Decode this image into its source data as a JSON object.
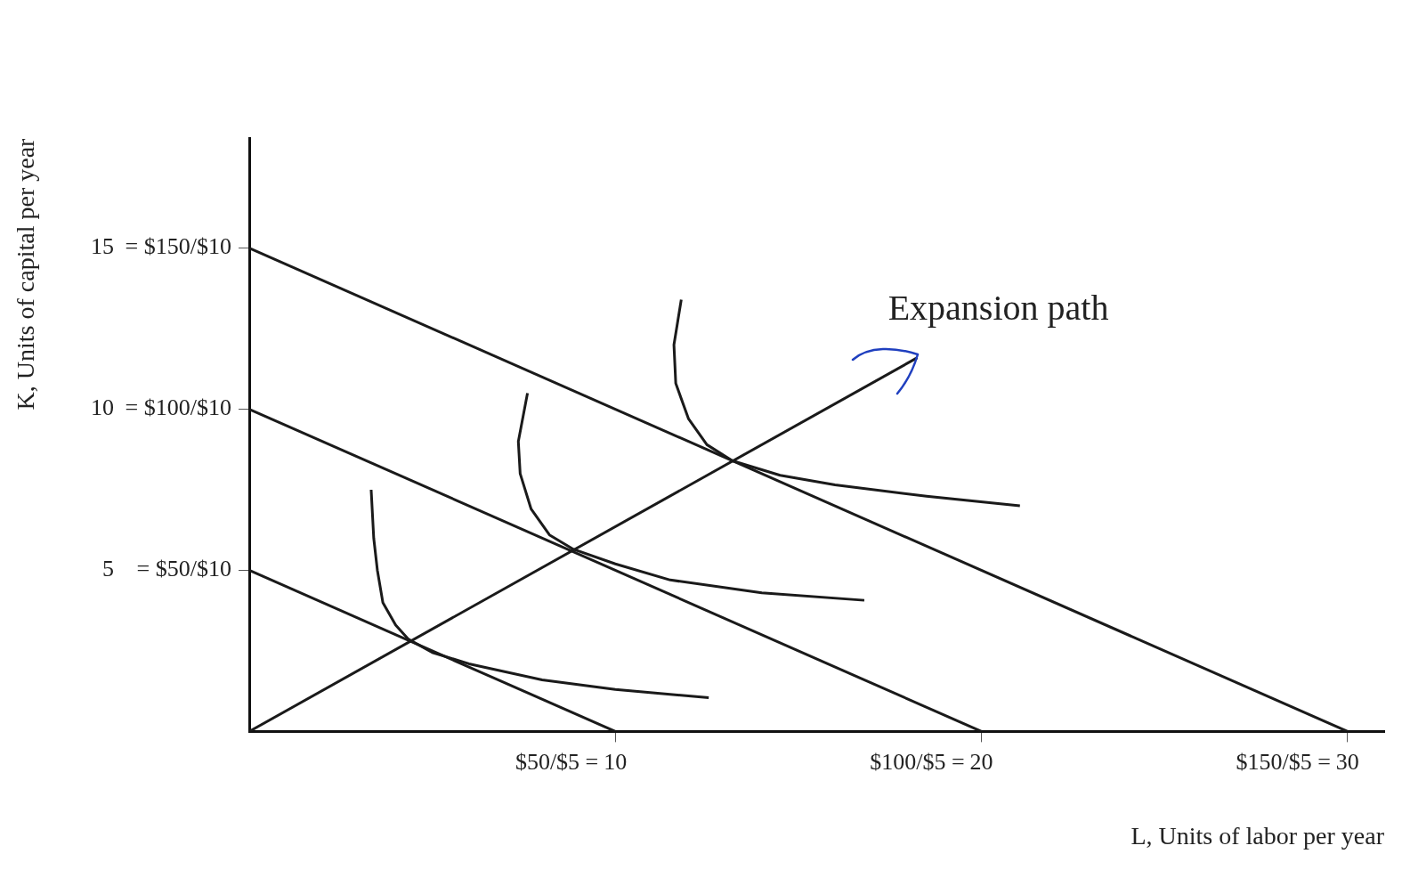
{
  "chart_data": {
    "type": "line",
    "xlabel": "L, Units of labor per year",
    "ylabel": "K, Units of capital per year",
    "xlim": [
      0,
      31
    ],
    "ylim": [
      0,
      18.4
    ],
    "xticks": [
      10,
      20,
      30
    ],
    "yticks": [
      5,
      10,
      15
    ],
    "grid": false,
    "legend": false,
    "marker": "none",
    "line_style": "solid",
    "series": [
      {
        "color": "#1a1a1a",
        "x": [
          0,
          10
        ],
        "values": [
          5,
          0
        ]
      },
      {
        "color": "#1a1a1a",
        "x": [
          0,
          20
        ],
        "values": [
          10,
          0
        ]
      },
      {
        "color": "#1a1a1a",
        "x": [
          0,
          30
        ],
        "values": [
          15,
          0
        ]
      },
      {
        "color": "#1a1a1a",
        "x": [
          0,
          18.25
        ],
        "values": [
          0,
          11.6
        ]
      },
      {
        "color": "#1a1a1a",
        "x": [
          3.33,
          3.4,
          3.5,
          3.65,
          4.0,
          4.35,
          5.0,
          6.0,
          8.0,
          10.0,
          12.55
        ],
        "values": [
          7.5,
          6.0,
          5.0,
          4.0,
          3.3,
          2.86,
          2.45,
          2.1,
          1.6,
          1.3,
          1.05
        ]
      },
      {
        "color": "#1a1a1a",
        "x": [
          7.6,
          7.35,
          7.4,
          7.7,
          8.2,
          8.86,
          10,
          11.5,
          14,
          16.8
        ],
        "values": [
          10.5,
          9.0,
          8.0,
          6.9,
          6.1,
          5.65,
          5.2,
          4.7,
          4.3,
          4.07
        ]
      },
      {
        "color": "#1a1a1a",
        "x": [
          11.8,
          11.6,
          11.65,
          12.0,
          12.5,
          13.2,
          14.5,
          16,
          18.5,
          21.05
        ],
        "values": [
          13.4,
          12.0,
          10.8,
          9.7,
          8.9,
          8.4,
          7.95,
          7.65,
          7.3,
          7.0
        ]
      }
    ],
    "annotations": [
      "= $50/$10",
      "= $100/$10",
      "= $150/$10",
      "$50/$5 =",
      "$100/$5 =",
      "$150/$5 =",
      "Expansion path"
    ]
  }
}
